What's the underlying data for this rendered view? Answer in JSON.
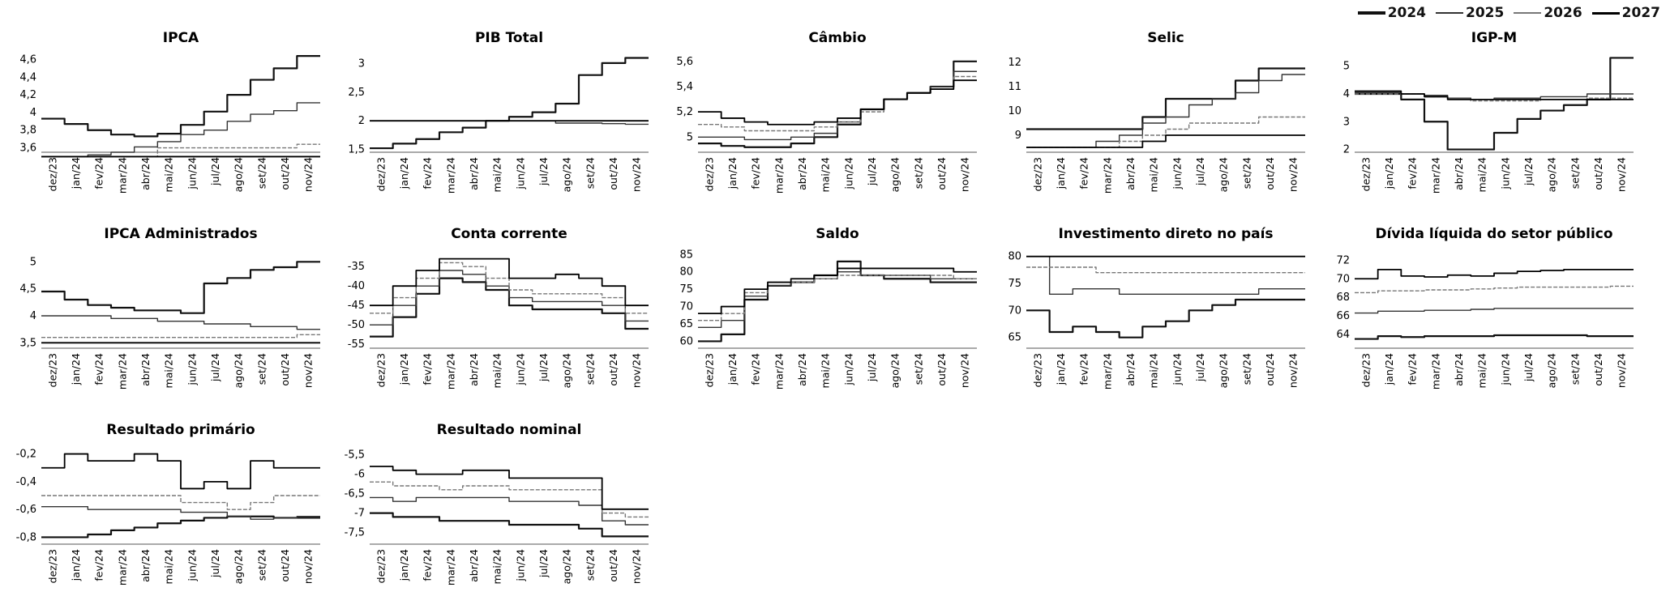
{
  "legend": {
    "items": [
      {
        "label": "2024",
        "color": "#111111",
        "width": 4
      },
      {
        "label": "2025",
        "color": "#333333",
        "width": 2
      },
      {
        "label": "2026",
        "color": "#777777",
        "width": 2
      },
      {
        "label": "2027",
        "color": "#000000",
        "width": 3
      }
    ]
  },
  "chart_data": [
    {
      "type": "line",
      "title": "IPCA",
      "x": [
        "dez/23",
        "jan/24",
        "fev/24",
        "mar/24",
        "abr/24",
        "mai/24",
        "jun/24",
        "jul/24",
        "ago/24",
        "set/24",
        "out/24",
        "nov/24"
      ],
      "yticks": [
        "3,6",
        "3,8",
        "4",
        "4,2",
        "4,4",
        "4,6"
      ],
      "ylim": [
        3.55,
        4.65
      ],
      "series": [
        {
          "name": "2024",
          "values": [
            3.93,
            3.87,
            3.8,
            3.75,
            3.73,
            3.76,
            3.86,
            4.01,
            4.2,
            4.37,
            4.5,
            4.64
          ]
        },
        {
          "name": "2025",
          "values": [
            3.5,
            3.5,
            3.52,
            3.55,
            3.61,
            3.67,
            3.75,
            3.8,
            3.9,
            3.98,
            4.02,
            4.11
          ]
        },
        {
          "name": "2026",
          "values": [
            3.5,
            3.5,
            3.5,
            3.5,
            3.5,
            3.6,
            3.6,
            3.6,
            3.6,
            3.6,
            3.6,
            3.64
          ]
        },
        {
          "name": "2027",
          "values": [
            3.5,
            3.5,
            3.5,
            3.5,
            3.5,
            3.5,
            3.5,
            3.5,
            3.5,
            3.5,
            3.5,
            3.5
          ]
        }
      ]
    },
    {
      "type": "line",
      "title": "PIB Total",
      "x": [
        "dez/23",
        "jan/24",
        "fev/24",
        "mar/24",
        "abr/24",
        "mai/24",
        "jun/24",
        "jul/24",
        "ago/24",
        "set/24",
        "out/24",
        "nov/24"
      ],
      "yticks": [
        "1,5",
        "2",
        "2,5",
        "3"
      ],
      "ylim": [
        1.45,
        3.15
      ],
      "series": [
        {
          "name": "2024",
          "values": [
            1.52,
            1.6,
            1.68,
            1.8,
            1.88,
            2.0,
            2.07,
            2.15,
            2.3,
            2.8,
            3.01,
            3.1
          ]
        },
        {
          "name": "2025",
          "values": [
            2.0,
            2.0,
            2.0,
            2.0,
            2.0,
            2.0,
            2.0,
            2.0,
            1.96,
            1.96,
            1.95,
            1.94
          ]
        },
        {
          "name": "2026",
          "values": [
            2.0,
            2.0,
            2.0,
            2.0,
            2.0,
            2.0,
            2.0,
            2.0,
            2.0,
            2.0,
            2.0,
            2.0
          ]
        },
        {
          "name": "2027",
          "values": [
            2.0,
            2.0,
            2.0,
            2.0,
            2.0,
            2.0,
            2.0,
            2.0,
            2.0,
            2.0,
            2.0,
            2.0
          ]
        }
      ]
    },
    {
      "type": "line",
      "title": "Câmbio",
      "x": [
        "dez/23",
        "jan/24",
        "fev/24",
        "mar/24",
        "abr/24",
        "mai/24",
        "jun/24",
        "jul/24",
        "ago/24",
        "set/24",
        "out/24",
        "nov/24"
      ],
      "yticks": [
        "5",
        "5,2",
        "5,4",
        "5,6"
      ],
      "ylim": [
        4.88,
        5.65
      ],
      "series": [
        {
          "name": "2024",
          "values": [
            4.95,
            4.93,
            4.92,
            4.92,
            4.95,
            5.0,
            5.1,
            5.22,
            5.3,
            5.35,
            5.4,
            5.6
          ]
        },
        {
          "name": "2025",
          "values": [
            5.0,
            5.0,
            4.98,
            4.98,
            5.0,
            5.03,
            5.12,
            5.22,
            5.3,
            5.35,
            5.4,
            5.52
          ]
        },
        {
          "name": "2026",
          "values": [
            5.1,
            5.08,
            5.05,
            5.05,
            5.05,
            5.08,
            5.12,
            5.2,
            5.3,
            5.35,
            5.38,
            5.48
          ]
        },
        {
          "name": "2027",
          "values": [
            5.2,
            5.15,
            5.12,
            5.1,
            5.1,
            5.12,
            5.15,
            5.22,
            5.3,
            5.35,
            5.38,
            5.45
          ]
        }
      ]
    },
    {
      "type": "line",
      "title": "Selic",
      "x": [
        "dez/23",
        "jan/24",
        "fev/24",
        "mar/24",
        "abr/24",
        "mai/24",
        "jun/24",
        "jul/24",
        "ago/24",
        "set/24",
        "out/24",
        "nov/24"
      ],
      "yticks": [
        "9",
        "10",
        "11",
        "12"
      ],
      "ylim": [
        8.3,
        12.3
      ],
      "series": [
        {
          "name": "2024",
          "values": [
            9.25,
            9.25,
            9.25,
            9.25,
            9.25,
            9.75,
            10.5,
            10.5,
            10.5,
            11.25,
            11.75,
            11.75
          ]
        },
        {
          "name": "2025",
          "values": [
            8.5,
            8.5,
            8.5,
            8.75,
            9.0,
            9.5,
            9.75,
            10.25,
            10.5,
            10.75,
            11.25,
            11.5
          ]
        },
        {
          "name": "2026",
          "values": [
            8.5,
            8.5,
            8.5,
            8.5,
            8.75,
            9.0,
            9.25,
            9.5,
            9.5,
            9.5,
            9.75,
            9.75
          ]
        },
        {
          "name": "2027",
          "values": [
            8.5,
            8.5,
            8.5,
            8.5,
            8.5,
            8.75,
            9.0,
            9.0,
            9.0,
            9.0,
            9.0,
            9.0
          ]
        }
      ]
    },
    {
      "type": "line",
      "title": "IGP-M",
      "x": [
        "dez/23",
        "jan/24",
        "fev/24",
        "mar/24",
        "abr/24",
        "mai/24",
        "jun/24",
        "jul/24",
        "ago/24",
        "set/24",
        "out/24",
        "nov/24"
      ],
      "yticks": [
        "2",
        "3",
        "4",
        "5"
      ],
      "ylim": [
        1.9,
        5.4
      ],
      "series": [
        {
          "name": "2024",
          "values": [
            4.0,
            4.0,
            3.8,
            3.0,
            2.0,
            2.0,
            2.6,
            3.1,
            3.4,
            3.6,
            3.8,
            5.3
          ]
        },
        {
          "name": "2025",
          "values": [
            4.05,
            4.05,
            4.0,
            3.95,
            3.85,
            3.8,
            3.85,
            3.85,
            3.9,
            3.9,
            4.0,
            4.0
          ]
        },
        {
          "name": "2026",
          "values": [
            4.0,
            4.0,
            4.0,
            3.9,
            3.8,
            3.75,
            3.75,
            3.75,
            3.8,
            3.8,
            3.85,
            3.85
          ]
        },
        {
          "name": "2027",
          "values": [
            4.1,
            4.1,
            4.0,
            3.9,
            3.8,
            3.8,
            3.8,
            3.8,
            3.8,
            3.8,
            3.8,
            3.8
          ]
        }
      ]
    },
    {
      "type": "line",
      "title": "IPCA Administrados",
      "x": [
        "dez/23",
        "jan/24",
        "fev/24",
        "mar/24",
        "abr/24",
        "mai/24",
        "jun/24",
        "jul/24",
        "ago/24",
        "set/24",
        "out/24",
        "nov/24"
      ],
      "yticks": [
        "3,5",
        "4",
        "4,5",
        "5"
      ],
      "ylim": [
        3.4,
        5.2
      ],
      "series": [
        {
          "name": "2024",
          "values": [
            4.45,
            4.3,
            4.2,
            4.15,
            4.1,
            4.1,
            4.05,
            4.6,
            4.7,
            4.85,
            4.9,
            5.0
          ]
        },
        {
          "name": "2025",
          "values": [
            4.0,
            4.0,
            4.0,
            3.95,
            3.95,
            3.9,
            3.9,
            3.85,
            3.85,
            3.8,
            3.8,
            3.75
          ]
        },
        {
          "name": "2026",
          "values": [
            3.6,
            3.6,
            3.6,
            3.6,
            3.6,
            3.6,
            3.6,
            3.6,
            3.6,
            3.6,
            3.6,
            3.65
          ]
        },
        {
          "name": "2027",
          "values": [
            3.5,
            3.5,
            3.5,
            3.5,
            3.5,
            3.5,
            3.5,
            3.5,
            3.5,
            3.5,
            3.5,
            3.5
          ]
        }
      ]
    },
    {
      "type": "line",
      "title": "Conta corrente",
      "x": [
        "dez/23",
        "jan/24",
        "fev/24",
        "mar/24",
        "abr/24",
        "mai/24",
        "jun/24",
        "jul/24",
        "ago/24",
        "set/24",
        "out/24",
        "nov/24"
      ],
      "yticks": [
        "-55",
        "-50",
        "-45",
        "-40",
        "-35"
      ],
      "ylim": [
        -56,
        -31
      ],
      "series": [
        {
          "name": "2024",
          "values": [
            -53,
            -48,
            -42,
            -38,
            -39,
            -41,
            -45,
            -46,
            -46,
            -46,
            -47,
            -51
          ]
        },
        {
          "name": "2025",
          "values": [
            -50,
            -45,
            -40,
            -36,
            -37,
            -40,
            -43,
            -44,
            -44,
            -44,
            -45,
            -49
          ]
        },
        {
          "name": "2026",
          "values": [
            -47,
            -43,
            -38,
            -34,
            -35,
            -38,
            -41,
            -42,
            -42,
            -42,
            -43,
            -47
          ]
        },
        {
          "name": "2027",
          "values": [
            -45,
            -40,
            -36,
            -33,
            -33,
            -33,
            -38,
            -38,
            -37,
            -38,
            -40,
            -45
          ]
        }
      ]
    },
    {
      "type": "line",
      "title": "Saldo",
      "x": [
        "dez/23",
        "jan/24",
        "fev/24",
        "mar/24",
        "abr/24",
        "mai/24",
        "jun/24",
        "jul/24",
        "ago/24",
        "set/24",
        "out/24",
        "nov/24"
      ],
      "yticks": [
        "60",
        "65",
        "70",
        "75",
        "80",
        "85"
      ],
      "ylim": [
        58,
        86
      ],
      "series": [
        {
          "name": "2024",
          "values": [
            60,
            62,
            72,
            76,
            77,
            79,
            83,
            79,
            78,
            78,
            77,
            77
          ]
        },
        {
          "name": "2025",
          "values": [
            64,
            66,
            73,
            76,
            77,
            78,
            80,
            79,
            79,
            79,
            78,
            78
          ]
        },
        {
          "name": "2026",
          "values": [
            66,
            68,
            74,
            77,
            77,
            78,
            79,
            79,
            79,
            79,
            79,
            78
          ]
        },
        {
          "name": "2027",
          "values": [
            68,
            70,
            75,
            77,
            78,
            79,
            81,
            81,
            81,
            81,
            81,
            80
          ]
        }
      ]
    },
    {
      "type": "line",
      "title": "Investimento direto no país",
      "x": [
        "dez/23",
        "jan/24",
        "fev/24",
        "mar/24",
        "abr/24",
        "mai/24",
        "jun/24",
        "jul/24",
        "ago/24",
        "set/24",
        "out/24",
        "nov/24"
      ],
      "yticks": [
        "65",
        "70",
        "75",
        "80"
      ],
      "ylim": [
        63,
        81
      ],
      "series": [
        {
          "name": "2024",
          "values": [
            70,
            66,
            67,
            66,
            65,
            67,
            68,
            70,
            71,
            72,
            72,
            72
          ]
        },
        {
          "name": "2025",
          "values": [
            80,
            73,
            74,
            74,
            73,
            73,
            73,
            73,
            73,
            73,
            74,
            74
          ]
        },
        {
          "name": "2026",
          "values": [
            78,
            78,
            78,
            77,
            77,
            77,
            77,
            77,
            77,
            77,
            77,
            77
          ]
        },
        {
          "name": "2027",
          "values": [
            80,
            80,
            80,
            80,
            80,
            80,
            80,
            80,
            80,
            80,
            80,
            80
          ]
        }
      ]
    },
    {
      "type": "line",
      "title": "Dívida líquida do setor público",
      "x": [
        "dez/23",
        "jan/24",
        "fev/24",
        "mar/24",
        "abr/24",
        "mai/24",
        "jun/24",
        "jul/24",
        "ago/24",
        "set/24",
        "out/24",
        "nov/24"
      ],
      "yticks": [
        "64",
        "66",
        "68",
        "70",
        "72"
      ],
      "ylim": [
        62.5,
        73
      ],
      "series": [
        {
          "name": "2024",
          "values": [
            63.5,
            63.8,
            63.7,
            63.8,
            63.8,
            63.8,
            63.9,
            63.9,
            63.9,
            63.9,
            63.8,
            63.8
          ]
        },
        {
          "name": "2025",
          "values": [
            66.3,
            66.5,
            66.5,
            66.6,
            66.6,
            66.7,
            66.8,
            66.8,
            66.8,
            66.8,
            66.8,
            66.8
          ]
        },
        {
          "name": "2026",
          "values": [
            68.5,
            68.7,
            68.7,
            68.8,
            68.8,
            68.9,
            69.0,
            69.1,
            69.1,
            69.1,
            69.1,
            69.2
          ]
        },
        {
          "name": "2027",
          "values": [
            70.0,
            71.0,
            70.3,
            70.2,
            70.4,
            70.3,
            70.6,
            70.8,
            70.9,
            71.0,
            71.0,
            71.0
          ]
        }
      ]
    },
    {
      "type": "line",
      "title": "Resultado primário",
      "x": [
        "dez/23",
        "jan/24",
        "fev/24",
        "mar/24",
        "abr/24",
        "mai/24",
        "jun/24",
        "jul/24",
        "ago/24",
        "set/24",
        "out/24",
        "nov/24"
      ],
      "yticks": [
        "-0,8",
        "-0,6",
        "-0,4",
        "-0,2"
      ],
      "ylim": [
        -0.85,
        -0.15
      ],
      "series": [
        {
          "name": "2024",
          "values": [
            -0.8,
            -0.8,
            -0.78,
            -0.75,
            -0.73,
            -0.7,
            -0.68,
            -0.66,
            -0.65,
            -0.65,
            -0.66,
            -0.66
          ]
        },
        {
          "name": "2025",
          "values": [
            -0.58,
            -0.58,
            -0.6,
            -0.6,
            -0.6,
            -0.6,
            -0.62,
            -0.62,
            -0.65,
            -0.67,
            -0.66,
            -0.65
          ]
        },
        {
          "name": "2026",
          "values": [
            -0.5,
            -0.5,
            -0.5,
            -0.5,
            -0.5,
            -0.5,
            -0.55,
            -0.55,
            -0.6,
            -0.55,
            -0.5,
            -0.5
          ]
        },
        {
          "name": "2027",
          "values": [
            -0.3,
            -0.2,
            -0.25,
            -0.25,
            -0.2,
            -0.25,
            -0.45,
            -0.4,
            -0.45,
            -0.25,
            -0.3,
            -0.3
          ]
        }
      ]
    },
    {
      "type": "line",
      "title": "Resultado nominal",
      "x": [
        "dez/23",
        "jan/24",
        "fev/24",
        "mar/24",
        "abr/24",
        "mai/24",
        "jun/24",
        "jul/24",
        "ago/24",
        "set/24",
        "out/24",
        "nov/24"
      ],
      "yticks": [
        "-7,5",
        "-7",
        "-6,5",
        "-6",
        "-5,5"
      ],
      "ylim": [
        -7.8,
        -5.3
      ],
      "series": [
        {
          "name": "2024",
          "values": [
            -7.0,
            -7.1,
            -7.1,
            -7.2,
            -7.2,
            -7.2,
            -7.3,
            -7.3,
            -7.3,
            -7.4,
            -7.6,
            -7.6
          ]
        },
        {
          "name": "2025",
          "values": [
            -6.6,
            -6.7,
            -6.6,
            -6.6,
            -6.6,
            -6.6,
            -6.7,
            -6.7,
            -6.7,
            -6.8,
            -7.2,
            -7.3
          ]
        },
        {
          "name": "2026",
          "values": [
            -6.2,
            -6.3,
            -6.3,
            -6.4,
            -6.3,
            -6.3,
            -6.4,
            -6.4,
            -6.4,
            -6.4,
            -7.0,
            -7.1
          ]
        },
        {
          "name": "2027",
          "values": [
            -5.8,
            -5.9,
            -6.0,
            -6.0,
            -5.9,
            -5.9,
            -6.1,
            -6.1,
            -6.1,
            -6.1,
            -6.9,
            -6.9
          ]
        }
      ]
    }
  ]
}
